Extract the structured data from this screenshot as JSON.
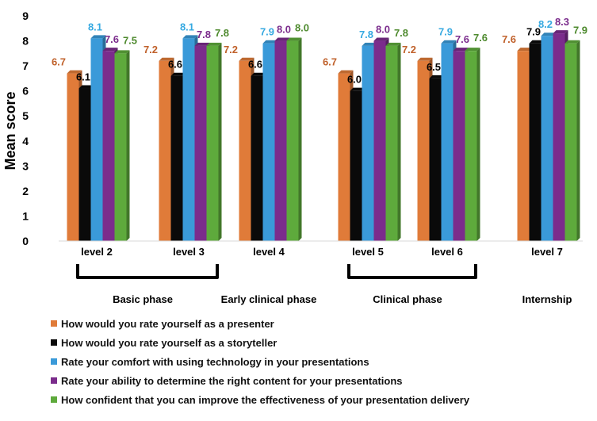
{
  "chart_data": {
    "type": "bar",
    "ylabel": "Mean score",
    "ylim": [
      0,
      9
    ],
    "yticks": [
      "0",
      "1",
      "2",
      "3",
      "4",
      "5",
      "6",
      "7",
      "8",
      "9"
    ],
    "categories": [
      "level 2",
      "level 3",
      "level 4",
      "level 5",
      "level 6",
      "level 7"
    ],
    "groups": [
      {
        "label": "Basic phase",
        "categories": [
          "level 2",
          "level 3"
        ],
        "bracket": true
      },
      {
        "label": "Early clinical phase",
        "categories": [
          "level 4"
        ],
        "bracket": false
      },
      {
        "label": "Clinical phase",
        "categories": [
          "level 5",
          "level 6"
        ],
        "bracket": true
      },
      {
        "label": "Internship",
        "categories": [
          "level 7"
        ],
        "bracket": false
      }
    ],
    "series": [
      {
        "name": "How would you rate yourself as a presenter",
        "color": "#E07B39",
        "label_color": "#C0612B",
        "values": [
          6.7,
          7.2,
          7.2,
          6.7,
          7.2,
          7.6
        ],
        "labels": [
          "6.7",
          "7.2",
          "7.2",
          "6.7",
          "7.2",
          "7.6"
        ]
      },
      {
        "name": "How would you rate yourself as a storyteller",
        "color": "#0a0a0a",
        "label_color": "#000000",
        "values": [
          6.1,
          6.6,
          6.6,
          6.0,
          6.5,
          7.9
        ],
        "labels": [
          "6.1",
          "6.6",
          "6.6",
          "6.0",
          "6.5",
          "7.9"
        ]
      },
      {
        "name": "Rate your comfort with using technology in your presentations",
        "color": "#3A9AD9",
        "label_color": "#36A9E1",
        "values": [
          8.1,
          8.1,
          7.9,
          7.8,
          7.9,
          8.2
        ],
        "labels": [
          "8.1",
          "8.1",
          "7.9",
          "7.8",
          "7.9",
          "8.2"
        ]
      },
      {
        "name": "Rate your ability to determine the right content for your presentations",
        "color": "#7B2C8C",
        "label_color": "#7B2C8C",
        "values": [
          7.6,
          7.8,
          8.0,
          8.0,
          7.6,
          8.3
        ],
        "labels": [
          "7.6",
          "7.8",
          "8.0",
          "8.0",
          "7.6",
          "8.3"
        ]
      },
      {
        "name": "How confident  that you can improve the effectiveness of your presentation delivery",
        "color": "#5EAA3C",
        "label_color": "#4E8A2E",
        "values": [
          7.5,
          7.8,
          8.0,
          7.8,
          7.6,
          7.9
        ],
        "labels": [
          "7.5",
          "7.8",
          "8.0",
          "7.8",
          "7.6",
          "7.9"
        ]
      }
    ]
  }
}
